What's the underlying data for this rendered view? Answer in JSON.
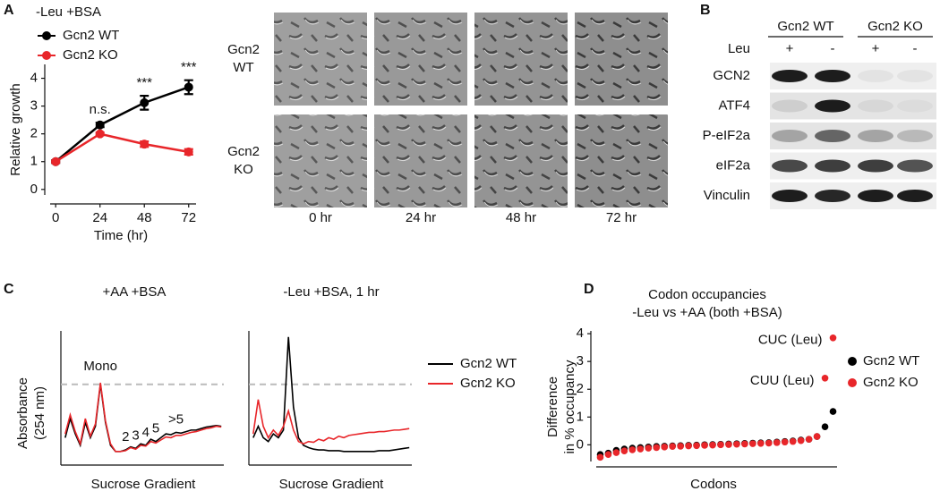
{
  "panel_labels": [
    "A",
    "B",
    "C",
    "D"
  ],
  "micrographs": {
    "rows": [
      [
        "Gcn2",
        "WT"
      ],
      [
        "Gcn2",
        "KO"
      ]
    ],
    "columns": [
      "0 hr",
      "24 hr",
      "48 hr",
      "72 hr"
    ]
  },
  "blot": {
    "groups": [
      "Gcn2 WT",
      "Gcn2 KO"
    ],
    "row_label": "Leu",
    "lanes": [
      "+",
      "-",
      "+",
      "-"
    ],
    "bands": [
      "GCN2",
      "ATF4",
      "P-eIF2a",
      "eIF2a",
      "Vinculin"
    ]
  },
  "chart_data": [
    {
      "type": "line",
      "title": "-Leu +BSA",
      "xlabel": "Time (hr)",
      "ylabel": "Relative growth",
      "x": [
        0,
        24,
        48,
        72
      ],
      "xlim": [
        -3,
        76
      ],
      "xticks": [
        0,
        24,
        48,
        72
      ],
      "ylim": [
        -0.2,
        4.5
      ],
      "yticks": [
        0,
        1,
        2,
        3,
        4
      ],
      "legend": "top-left",
      "series": [
        {
          "name": "Gcn2 WT",
          "color": "#000000",
          "values": [
            1,
            2.32,
            3.12,
            3.68
          ],
          "errors": [
            0.05,
            0.08,
            0.25,
            0.25
          ]
        },
        {
          "name": "Gcn2 KO",
          "color": "#e8262a",
          "values": [
            1,
            2.0,
            1.63,
            1.35
          ],
          "errors": [
            0.04,
            0.05,
            0.1,
            0.1
          ]
        }
      ],
      "annotations": [
        {
          "x": 24,
          "label": "n.s."
        },
        {
          "x": 48,
          "label": "***"
        },
        {
          "x": 72,
          "label": "***"
        }
      ]
    },
    {
      "type": "line",
      "title": "+AA +BSA",
      "xlabel": "Sucrose Gradient",
      "ylabel": [
        "Absorbance",
        "(254 nm)"
      ],
      "ylim": [
        0,
        1.7
      ],
      "hline": 1.0,
      "hline_color": "#bbbbbb",
      "annotations": [
        "Mono",
        "2",
        "3",
        "4",
        "5",
        ">5"
      ],
      "series": [
        {
          "name": "Gcn2 WT",
          "color": "#000000",
          "values": [
            0.3,
            0.55,
            0.35,
            0.2,
            0.5,
            0.3,
            0.45,
            1.0,
            0.5,
            0.2,
            0.12,
            0.12,
            0.14,
            0.18,
            0.16,
            0.22,
            0.2,
            0.28,
            0.25,
            0.3,
            0.35,
            0.34,
            0.37,
            0.36,
            0.38,
            0.4,
            0.4,
            0.42,
            0.44,
            0.45,
            0.46,
            0.45
          ]
        },
        {
          "name": "Gcn2 KO",
          "color": "#e8262a",
          "values": [
            0.35,
            0.6,
            0.38,
            0.22,
            0.55,
            0.32,
            0.48,
            1.02,
            0.52,
            0.22,
            0.12,
            0.12,
            0.13,
            0.17,
            0.15,
            0.2,
            0.19,
            0.25,
            0.23,
            0.27,
            0.31,
            0.3,
            0.33,
            0.33,
            0.35,
            0.37,
            0.38,
            0.4,
            0.42,
            0.43,
            0.45,
            0.44
          ]
        }
      ]
    },
    {
      "type": "line",
      "title": "-Leu +BSA, 1 hr",
      "xlabel": "Sucrose Gradient",
      "ylim": [
        0,
        1.7
      ],
      "hline": 1.0,
      "hline_color": "#bbbbbb",
      "legend": "right",
      "series": [
        {
          "name": "Gcn2 WT",
          "color": "#000000",
          "values": [
            0.3,
            0.45,
            0.3,
            0.25,
            0.35,
            0.3,
            0.4,
            1.62,
            0.7,
            0.3,
            0.2,
            0.17,
            0.15,
            0.14,
            0.14,
            0.13,
            0.13,
            0.13,
            0.12,
            0.12,
            0.12,
            0.12,
            0.12,
            0.12,
            0.12,
            0.13,
            0.13,
            0.13,
            0.14,
            0.15,
            0.16,
            0.17
          ]
        },
        {
          "name": "Gcn2 KO",
          "color": "#e8262a",
          "values": [
            0.35,
            0.8,
            0.45,
            0.3,
            0.4,
            0.33,
            0.45,
            0.65,
            0.4,
            0.25,
            0.22,
            0.25,
            0.24,
            0.28,
            0.26,
            0.3,
            0.28,
            0.32,
            0.3,
            0.33,
            0.34,
            0.35,
            0.36,
            0.37,
            0.37,
            0.38,
            0.38,
            0.39,
            0.4,
            0.4,
            0.41,
            0.42
          ]
        }
      ]
    },
    {
      "type": "scatter",
      "title": [
        "Codon occupancies",
        "-Leu vs +AA (both +BSA)"
      ],
      "xlabel": "Codons",
      "ylabel": [
        "Difference",
        "in % occupancy"
      ],
      "ylim": [
        -0.6,
        4.1
      ],
      "yticks": [
        0,
        1,
        2,
        3,
        4
      ],
      "legend": "right",
      "series": [
        {
          "name": "Gcn2 WT",
          "color": "#000000",
          "values": [
            -0.35,
            -0.3,
            -0.2,
            -0.15,
            -0.12,
            -0.1,
            -0.08,
            -0.06,
            -0.05,
            -0.04,
            -0.03,
            -0.02,
            -0.01,
            0,
            0.01,
            0.02,
            0.03,
            0.04,
            0.05,
            0.06,
            0.07,
            0.08,
            0.1,
            0.12,
            0.14,
            0.17,
            0.2,
            0.3,
            0.65,
            1.2
          ]
        },
        {
          "name": "Gcn2 KO",
          "color": "#e8262a",
          "values": [
            -0.45,
            -0.35,
            -0.28,
            -0.22,
            -0.18,
            -0.15,
            -0.12,
            -0.1,
            -0.08,
            -0.06,
            -0.05,
            -0.04,
            -0.03,
            -0.02,
            -0.01,
            0,
            0.01,
            0.02,
            0.03,
            0.04,
            0.05,
            0.06,
            0.08,
            0.1,
            0.12,
            0.15,
            0.2,
            0.3,
            2.4,
            3.85
          ]
        }
      ],
      "annotations": [
        {
          "text": "CUC (Leu)",
          "color": "#e8262a"
        },
        {
          "text": "CUU (Leu)",
          "color": "#e8262a"
        }
      ]
    }
  ]
}
